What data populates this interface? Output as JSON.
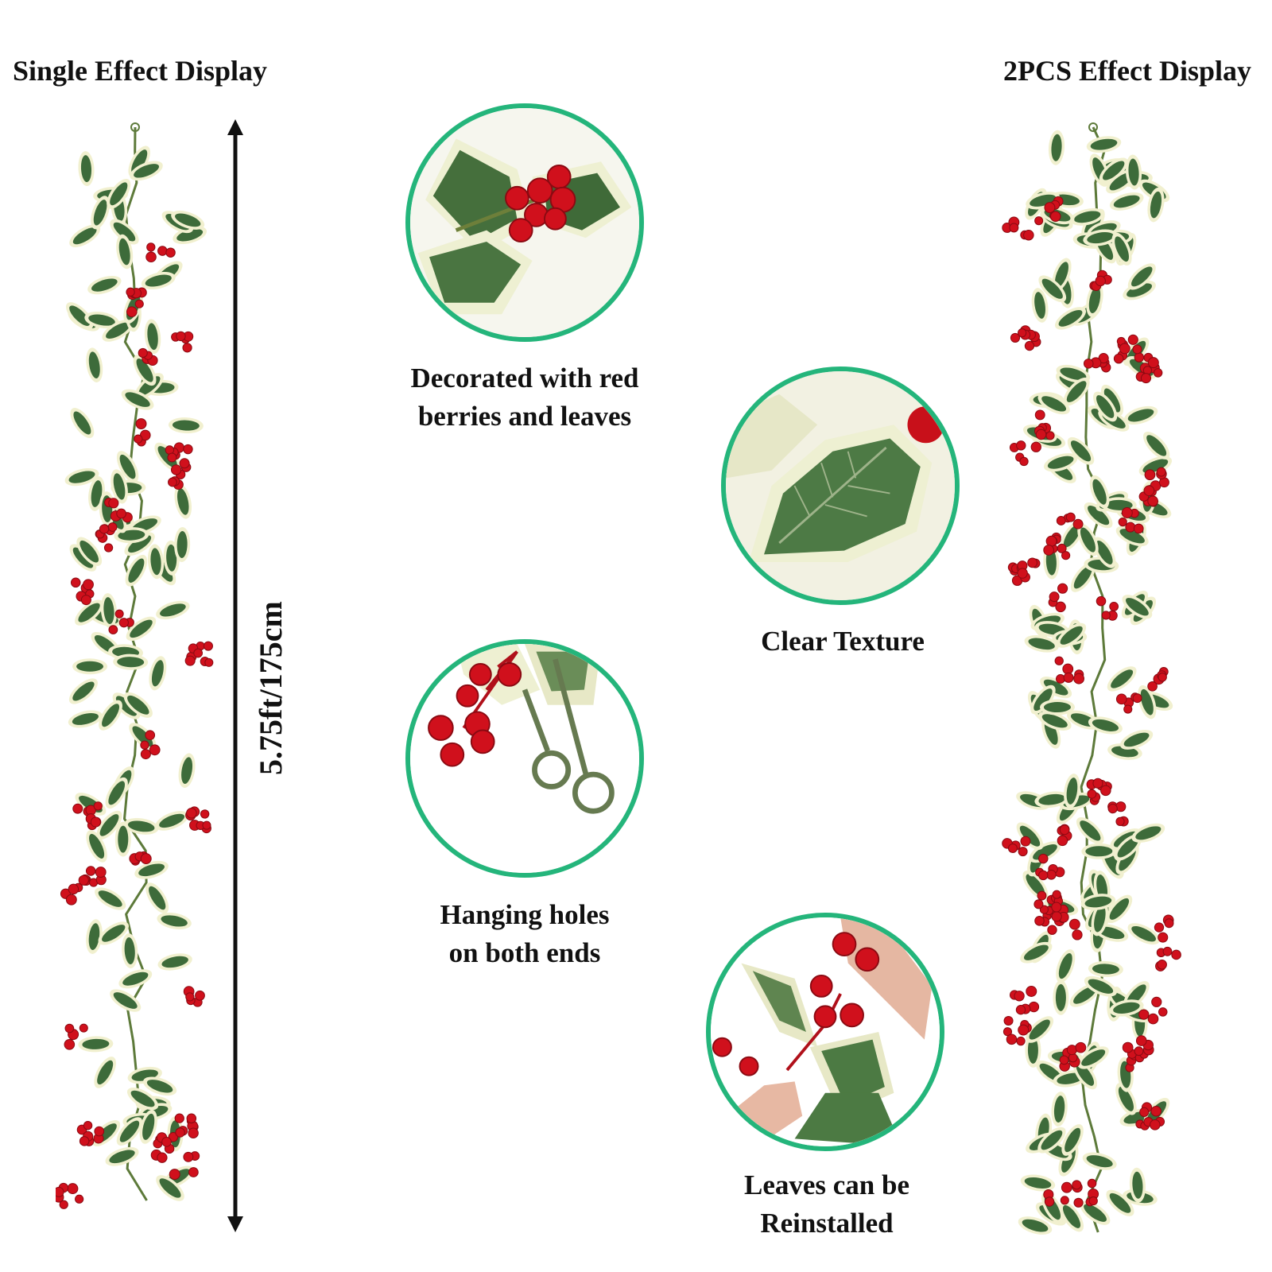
{
  "headings": {
    "single": "Single Effect Display",
    "double": "2PCS Effect Display"
  },
  "measurement": "5.75ft/175cm",
  "details": [
    {
      "line1": "Decorated with red",
      "line2": "berries and leaves"
    },
    {
      "line1": "Clear Texture",
      "line2": ""
    },
    {
      "line1": "Hanging holes",
      "line2": "on both ends"
    },
    {
      "line1": "Leaves can be",
      "line2": "Reinstalled"
    }
  ],
  "colors": {
    "circle_border": "#24b57b",
    "berry": "#d0101c",
    "leaf_dark": "#3d6b3a",
    "leaf_edge": "#f1f0cf",
    "arrow": "#111111"
  }
}
